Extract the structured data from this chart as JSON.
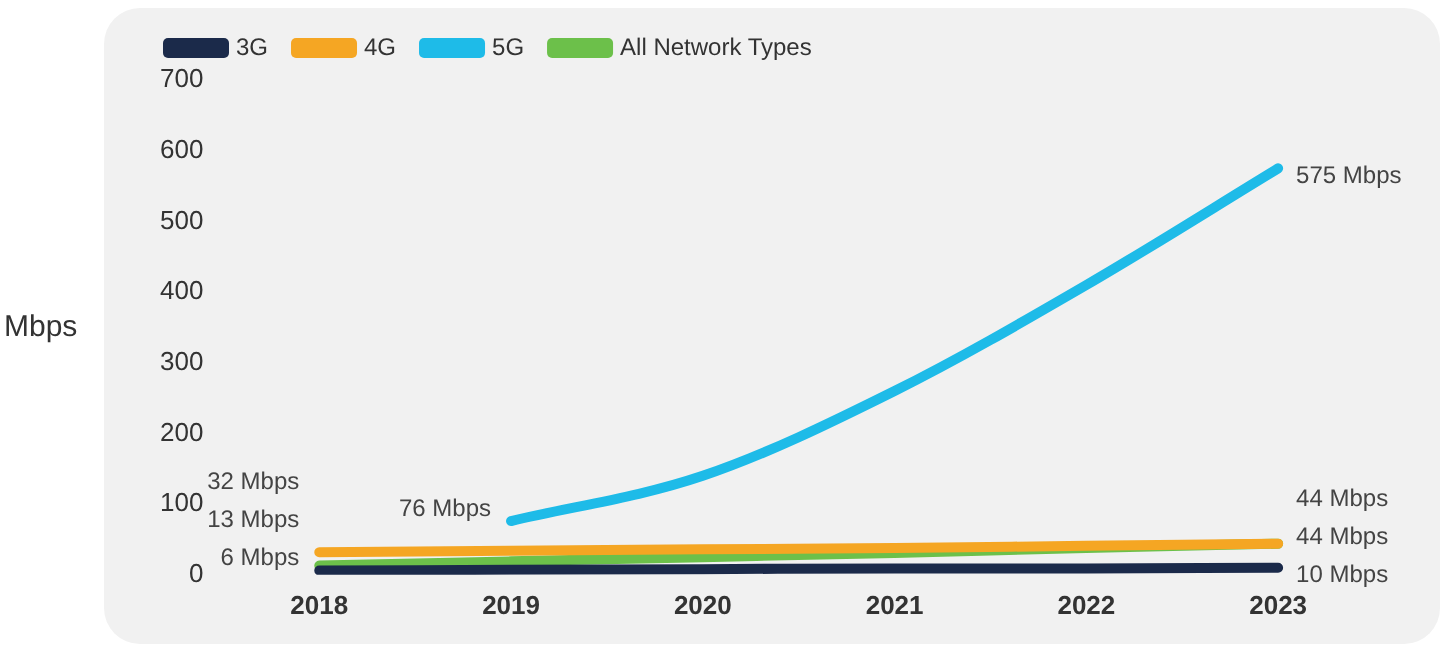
{
  "chart_data": {
    "type": "line",
    "ylabel": "Mbps",
    "categories": [
      "2018",
      "2019",
      "2020",
      "2021",
      "2022",
      "2023"
    ],
    "series": [
      {
        "name": "3G",
        "color": "#1b2a4a",
        "values": [
          6,
          7,
          8,
          9,
          9,
          10
        ],
        "value_labels": [
          "6 Mbps",
          null,
          null,
          null,
          null,
          "10 Mbps"
        ]
      },
      {
        "name": "4G",
        "color": "#f5a623",
        "values": [
          32,
          34,
          36,
          38,
          41,
          44
        ],
        "value_labels": [
          "32 Mbps",
          null,
          null,
          null,
          null,
          "44 Mbps"
        ]
      },
      {
        "name": "5G",
        "color": "#1ebbe8",
        "values": [
          null,
          76,
          140,
          260,
          410,
          575
        ],
        "value_labels": [
          null,
          "76 Mbps",
          null,
          null,
          null,
          "575 Mbps"
        ]
      },
      {
        "name": "All Network Types",
        "color": "#6cc04a",
        "values": [
          13,
          19,
          25,
          31,
          38,
          44
        ],
        "value_labels": [
          "13 Mbps",
          null,
          null,
          null,
          null,
          "44 Mbps"
        ]
      }
    ],
    "ylim": [
      0,
      700
    ],
    "yticks": [
      0,
      100,
      200,
      300,
      400,
      500,
      600,
      700
    ],
    "grid": false,
    "legend": "top left",
    "marker": "none",
    "line_style": "solid"
  }
}
